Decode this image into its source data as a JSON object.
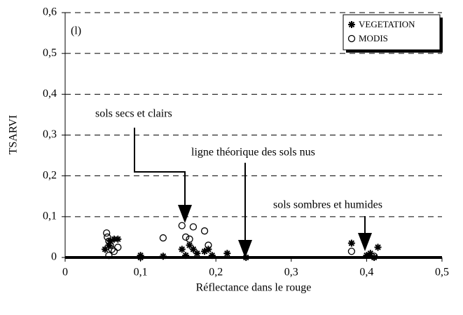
{
  "chart_data": {
    "type": "scatter",
    "annotations": [
      "(l)",
      "sols secs et clairs",
      "ligne théorique des sols nus",
      "sols sombres et humides"
    ],
    "xlabel": "Réflectance dans le rouge",
    "ylabel": "TSARVI",
    "xlim": [
      0,
      0.5
    ],
    "ylim": [
      0,
      0.6
    ],
    "xticks": [
      0,
      {
        "value": 0.1,
        "label": "0,1"
      },
      {
        "value": 0.2,
        "label": "0,2"
      },
      {
        "value": 0.3,
        "label": "0,3"
      },
      {
        "value": 0.4,
        "label": "0,4"
      },
      {
        "value": 0.5,
        "label": "0,5"
      }
    ],
    "yticks": [
      0,
      {
        "value": 0.1,
        "label": "0,1"
      },
      {
        "value": 0.2,
        "label": "0,2"
      },
      {
        "value": 0.3,
        "label": "0,3"
      },
      {
        "value": 0.4,
        "label": "0,4"
      },
      {
        "value": 0.5,
        "label": "0,5"
      },
      {
        "value": 0.6,
        "label": "0,6"
      }
    ],
    "grid": true,
    "series": [
      {
        "name": "VEGETATION",
        "color": "#000",
        "marker": "asterisk",
        "x": [
          0.053,
          0.058,
          0.06,
          0.065,
          0.07,
          0.1,
          0.1,
          0.13,
          0.155,
          0.16,
          0.165,
          0.17,
          0.175,
          0.185,
          0.19,
          0.195,
          0.215,
          0.24,
          0.38,
          0.4,
          0.405,
          0.415,
          0.41
        ],
        "values": [
          0.02,
          0.03,
          0.04,
          0.045,
          0.045,
          0.005,
          0,
          0.003,
          0.02,
          0.005,
          0.03,
          0.02,
          0.01,
          0.015,
          0.02,
          0.005,
          0.01,
          0,
          0.035,
          0.005,
          0.01,
          0.025,
          0
        ]
      },
      {
        "name": "MODIS",
        "color": "#000",
        "marker": "circle",
        "x": [
          0.055,
          0.056,
          0.058,
          0.06,
          0.062,
          0.058,
          0.065,
          0.07,
          0.13,
          0.155,
          0.16,
          0.165,
          0.17,
          0.185,
          0.19,
          0.38,
          0.41
        ],
        "values": [
          0.06,
          0.05,
          0.04,
          0.03,
          0.02,
          0.005,
          0.015,
          0.025,
          0.048,
          0.078,
          0.05,
          0.045,
          0.075,
          0.065,
          0.03,
          0.015,
          0.003
        ]
      }
    ]
  }
}
